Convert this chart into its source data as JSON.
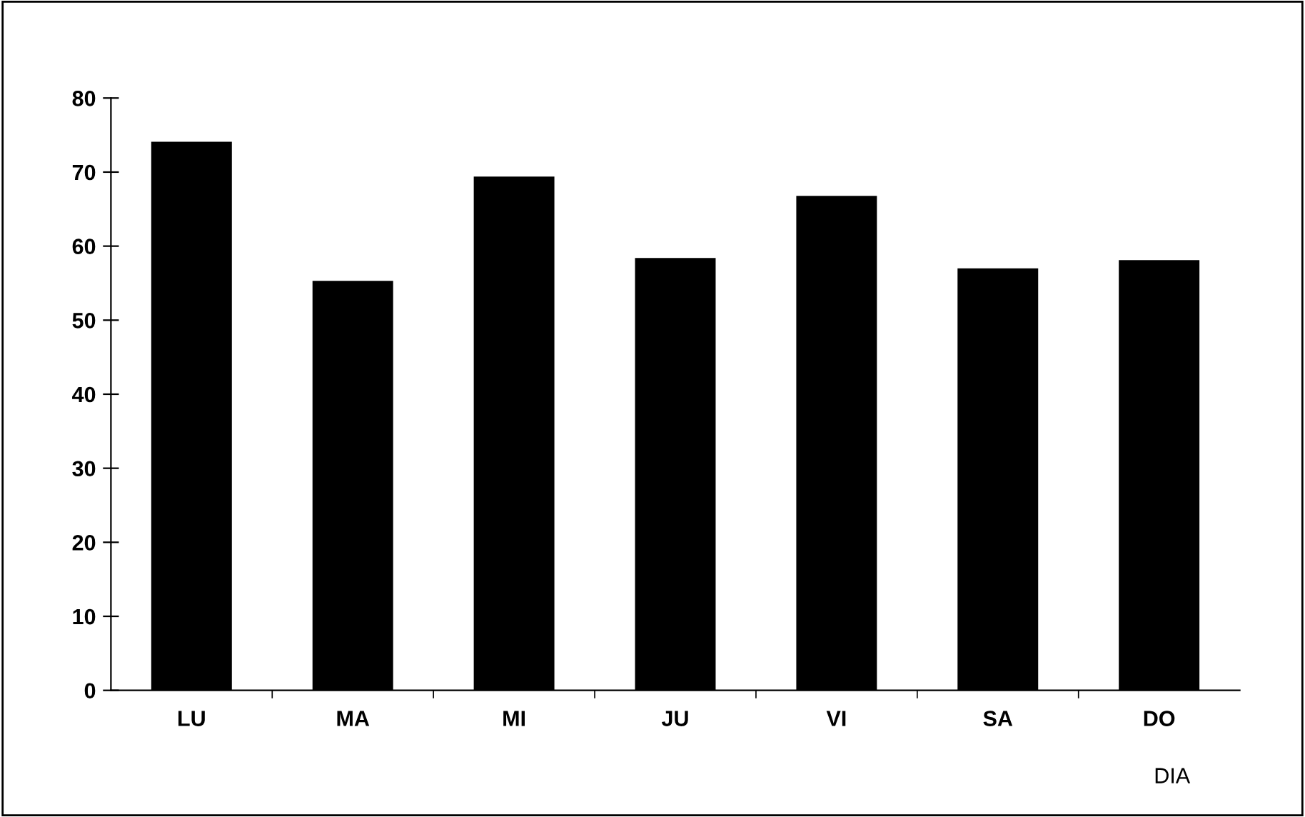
{
  "chart_data": {
    "type": "bar",
    "xlabel": "DIA",
    "categories": [
      "LU",
      "MA",
      "MI",
      "JU",
      "VI",
      "SA",
      "DO"
    ],
    "values": [
      74.1,
      55.3,
      69.4,
      58.4,
      66.8,
      57.0,
      58.1
    ],
    "color": "#000000",
    "ylim": [
      0,
      80
    ],
    "yticks": [
      0,
      10,
      20,
      30,
      40,
      50,
      60,
      70,
      80
    ],
    "grid": false
  }
}
